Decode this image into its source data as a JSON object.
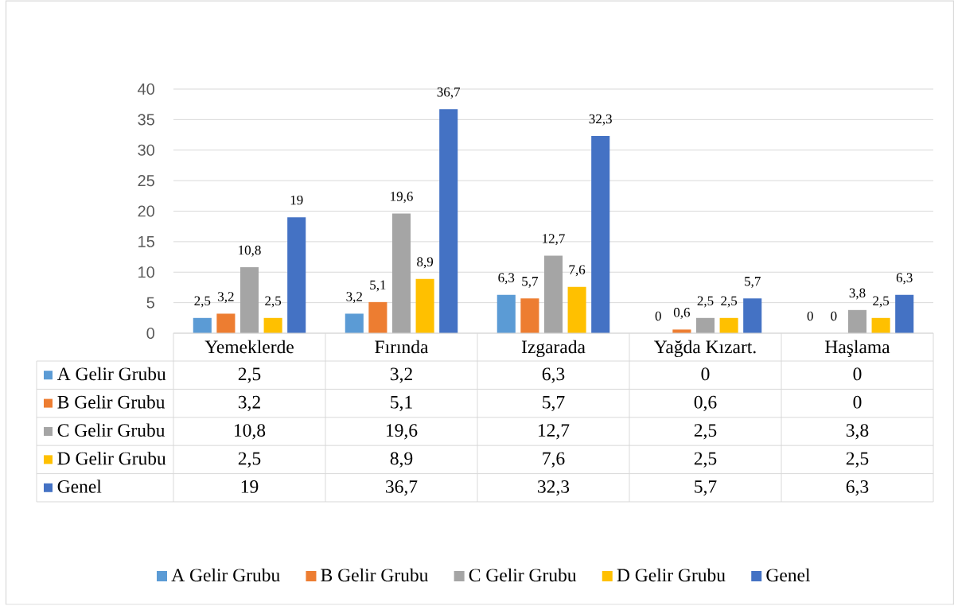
{
  "chart_data": {
    "type": "bar",
    "categories": [
      "Yemeklerde",
      "Fırında",
      "Izgarada",
      "Yağda Kızart.",
      "Haşlama"
    ],
    "series": [
      {
        "name": "A Gelir Grubu",
        "color": "#5b9bd5",
        "values": [
          2.5,
          3.2,
          6.3,
          0,
          0
        ],
        "value_labels": [
          "2,5",
          "3,2",
          "6,3",
          "0",
          "0"
        ]
      },
      {
        "name": "B Gelir Grubu",
        "color": "#ed7d31",
        "values": [
          3.2,
          5.1,
          5.7,
          0.6,
          0
        ],
        "value_labels": [
          "3,2",
          "5,1",
          "5,7",
          "0,6",
          "0"
        ]
      },
      {
        "name": "C Gelir Grubu",
        "color": "#a5a5a5",
        "values": [
          10.8,
          19.6,
          12.7,
          2.5,
          3.8
        ],
        "value_labels": [
          "10,8",
          "19,6",
          "12,7",
          "2,5",
          "3,8"
        ]
      },
      {
        "name": "D Gelir Grubu",
        "color": "#ffc000",
        "values": [
          2.5,
          8.9,
          7.6,
          2.5,
          2.5
        ],
        "value_labels": [
          "2,5",
          "8,9",
          "7,6",
          "2,5",
          "2,5"
        ]
      },
      {
        "name": "Genel",
        "color": "#4472c4",
        "values": [
          19,
          36.7,
          32.3,
          5.7,
          6.3
        ],
        "value_labels": [
          "19",
          "36,7",
          "32,3",
          "5,7",
          "6,3"
        ]
      }
    ],
    "ylim": [
      0,
      40
    ],
    "yticks": [
      0,
      5,
      10,
      15,
      20,
      25,
      30,
      35,
      40
    ],
    "grid": "y",
    "legend": "bottom"
  }
}
